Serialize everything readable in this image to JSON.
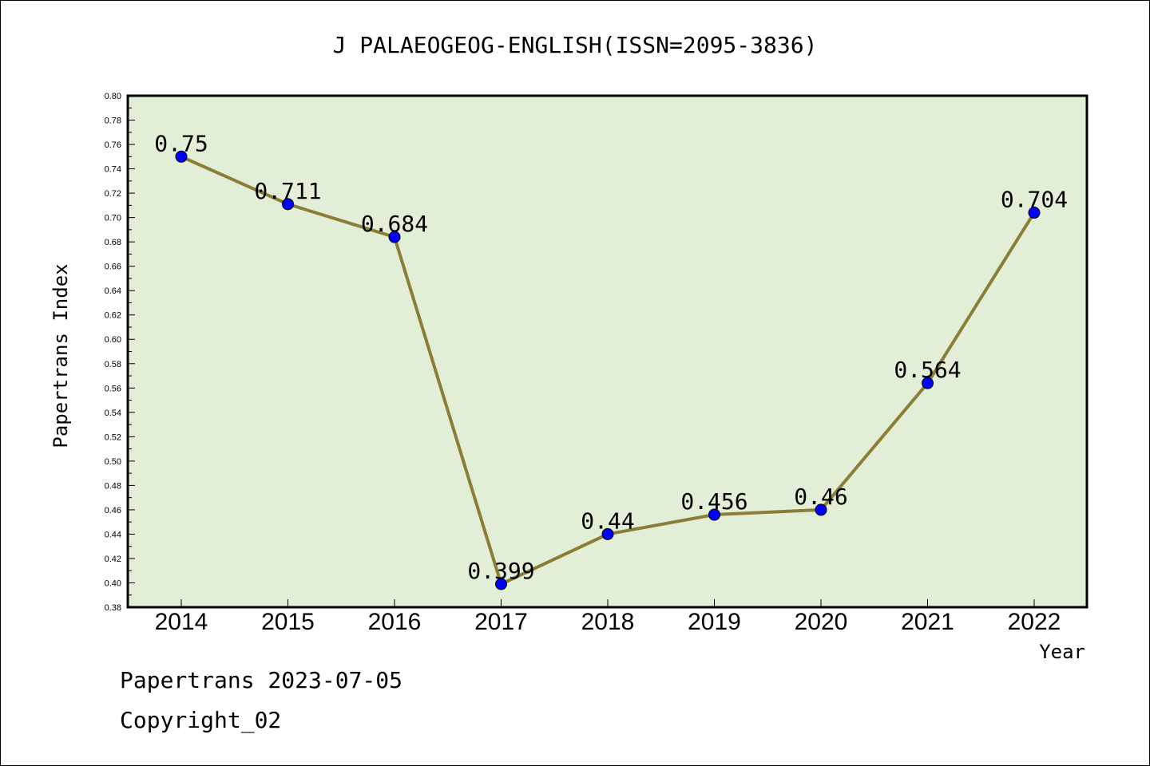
{
  "chart_data": {
    "type": "line",
    "title": "J PALAEOGEOG-ENGLISH(ISSN=2095-3836)",
    "xlabel": "Year",
    "ylabel": "Papertrans Index",
    "categories": [
      "2014",
      "2015",
      "2016",
      "2017",
      "2018",
      "2019",
      "2020",
      "2021",
      "2022"
    ],
    "series": [
      {
        "values": [
          0.75,
          0.711,
          0.684,
          0.399,
          0.44,
          0.456,
          0.46,
          0.564,
          0.704
        ],
        "labels": [
          "0.75",
          "0.711",
          "0.684",
          "0.399",
          "0.44",
          "0.456",
          "0.46",
          "0.564",
          "0.704"
        ]
      }
    ],
    "ylim": [
      0.38,
      0.8
    ],
    "yticks": [
      "0.38",
      "0.40",
      "0.42",
      "0.44",
      "0.46",
      "0.48",
      "0.50",
      "0.52",
      "0.54",
      "0.56",
      "0.58",
      "0.60",
      "0.62",
      "0.64",
      "0.66",
      "0.68",
      "0.70",
      "0.72",
      "0.74",
      "0.76",
      "0.78",
      "0.80"
    ],
    "colors": {
      "plot_background": "#e2efd6",
      "line": "#8b7d35",
      "marker": "#0000ff"
    },
    "grid": false,
    "legend": "none"
  },
  "footer": {
    "line1": "Papertrans 2023-07-05",
    "line2": "Copyright_02"
  }
}
